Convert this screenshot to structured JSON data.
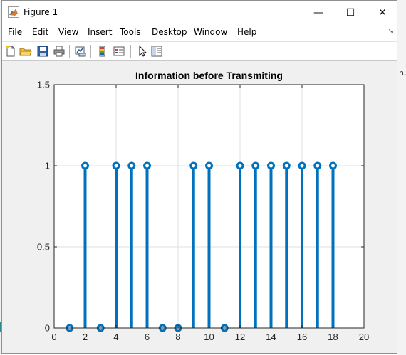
{
  "window": {
    "title": "Figure 1",
    "minimize_glyph": "—",
    "maximize_glyph": "☐",
    "close_glyph": "✕"
  },
  "menu": {
    "items": [
      "File",
      "Edit",
      "View",
      "Insert",
      "Tools",
      "Desktop",
      "Window",
      "Help"
    ],
    "overflow_glyph": "↘"
  },
  "toolbar": {
    "icons": [
      "new-figure-icon",
      "open-file-icon",
      "save-icon",
      "print-icon",
      "link-plot-icon",
      "colorbar-icon",
      "legend-icon",
      "pointer-icon",
      "property-editor-icon"
    ]
  },
  "colors": {
    "stem": "#0072bd",
    "axes_bg": "#ffffff",
    "figure_bg": "#f0f0f0",
    "grid": "#dfdfdf"
  },
  "chart_data": {
    "type": "stem",
    "title": "Information before Transmiting",
    "xlabel": "",
    "ylabel": "",
    "xlim": [
      0,
      20
    ],
    "ylim": [
      0,
      1.5
    ],
    "xticks": [
      0,
      2,
      4,
      6,
      8,
      10,
      12,
      14,
      16,
      18,
      20
    ],
    "yticks": [
      0,
      0.5,
      1,
      1.5
    ],
    "grid": true,
    "x": [
      1,
      2,
      3,
      4,
      5,
      6,
      7,
      8,
      9,
      10,
      11,
      12,
      13,
      14,
      15,
      16,
      17,
      18
    ],
    "y": [
      0,
      1,
      0,
      1,
      1,
      1,
      0,
      0,
      1,
      1,
      0,
      1,
      1,
      1,
      1,
      1,
      1,
      1
    ]
  },
  "background": {
    "partial_text": "n,"
  }
}
